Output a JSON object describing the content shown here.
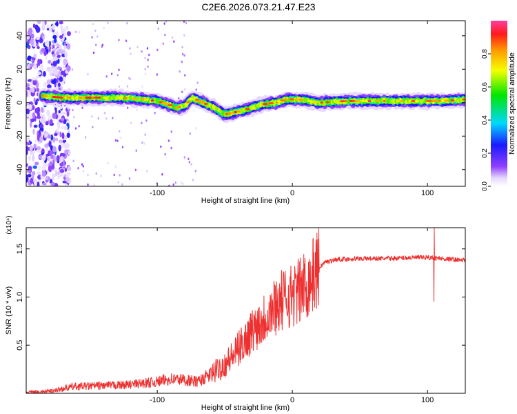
{
  "title": "C2E6.2026.073.21.47.E23",
  "chart_data": [
    {
      "type": "heatmap",
      "id": "spectrogram",
      "xlabel": "Height of straight line (km)",
      "ylabel": "Frequency (Hz)",
      "xlim": [
        -197,
        128
      ],
      "ylim": [
        -50,
        49
      ],
      "xticks": [
        -100,
        0,
        100
      ],
      "xtick_labels": [
        "-100",
        "0",
        "100"
      ],
      "yticks": [
        -40,
        -20,
        0,
        20,
        40
      ],
      "ytick_labels": [
        "-40",
        "-20",
        "0",
        "20",
        "40"
      ],
      "colorbar": {
        "label": "Normalized spectral amplitude",
        "ticks": [
          0.0,
          0.2,
          0.4,
          0.6,
          0.8
        ],
        "tick_labels": [
          "0.0",
          "0.2",
          "0.4",
          "0.6",
          "0.8"
        ],
        "range": [
          0,
          1
        ]
      },
      "ridge": {
        "x": [
          -185,
          -170,
          -150,
          -130,
          -110,
          -100,
          -92,
          -86,
          -80,
          -74,
          -66,
          -58,
          -50,
          -44,
          -38,
          -30,
          -22,
          -12,
          -4,
          4,
          12,
          20,
          40,
          60,
          80,
          95,
          104,
          112,
          128
        ],
        "y": [
          4,
          3,
          3,
          3,
          2,
          1,
          -1,
          -3,
          -2,
          3,
          0,
          -3,
          -7,
          -6,
          -5,
          -3,
          -1,
          0,
          2,
          2,
          1,
          0,
          1,
          1,
          1,
          1,
          1,
          1,
          2
        ]
      },
      "noise_region_x": [
        -197,
        -165
      ]
    },
    {
      "type": "line",
      "id": "snr",
      "xlabel": "Height of straight line (km)",
      "ylabel": "SNR (10 * v/v)",
      "scale_label": "(x10⁴)",
      "xlim": [
        -197,
        128
      ],
      "ylim": [
        0,
        1.72
      ],
      "xticks": [
        -100,
        0,
        100
      ],
      "xtick_labels": [
        "-100",
        "0",
        "100"
      ],
      "yticks": [
        0.5,
        1.0,
        1.5
      ],
      "ytick_labels": [
        "0.5",
        "1.0",
        "1.5"
      ],
      "series": [
        {
          "name": "SNR",
          "color": "#ee3030",
          "envelope_x": [
            -197,
            -180,
            -162,
            -140,
            -120,
            -100,
            -90,
            -80,
            -70,
            -60,
            -50,
            -42,
            -35,
            -28,
            -20,
            -12,
            -4,
            4,
            12,
            18,
            24,
            32,
            50,
            70,
            90,
            100,
            110,
            128
          ],
          "envelope_y": [
            0.01,
            0.02,
            0.07,
            0.08,
            0.09,
            0.12,
            0.15,
            0.14,
            0.12,
            0.2,
            0.3,
            0.42,
            0.55,
            0.68,
            0.8,
            0.92,
            1.0,
            1.05,
            1.15,
            1.28,
            1.36,
            1.39,
            1.4,
            1.4,
            1.41,
            1.41,
            1.4,
            1.38
          ],
          "spike_x": 105,
          "spike_range": [
            0.95,
            1.72
          ]
        }
      ]
    }
  ]
}
